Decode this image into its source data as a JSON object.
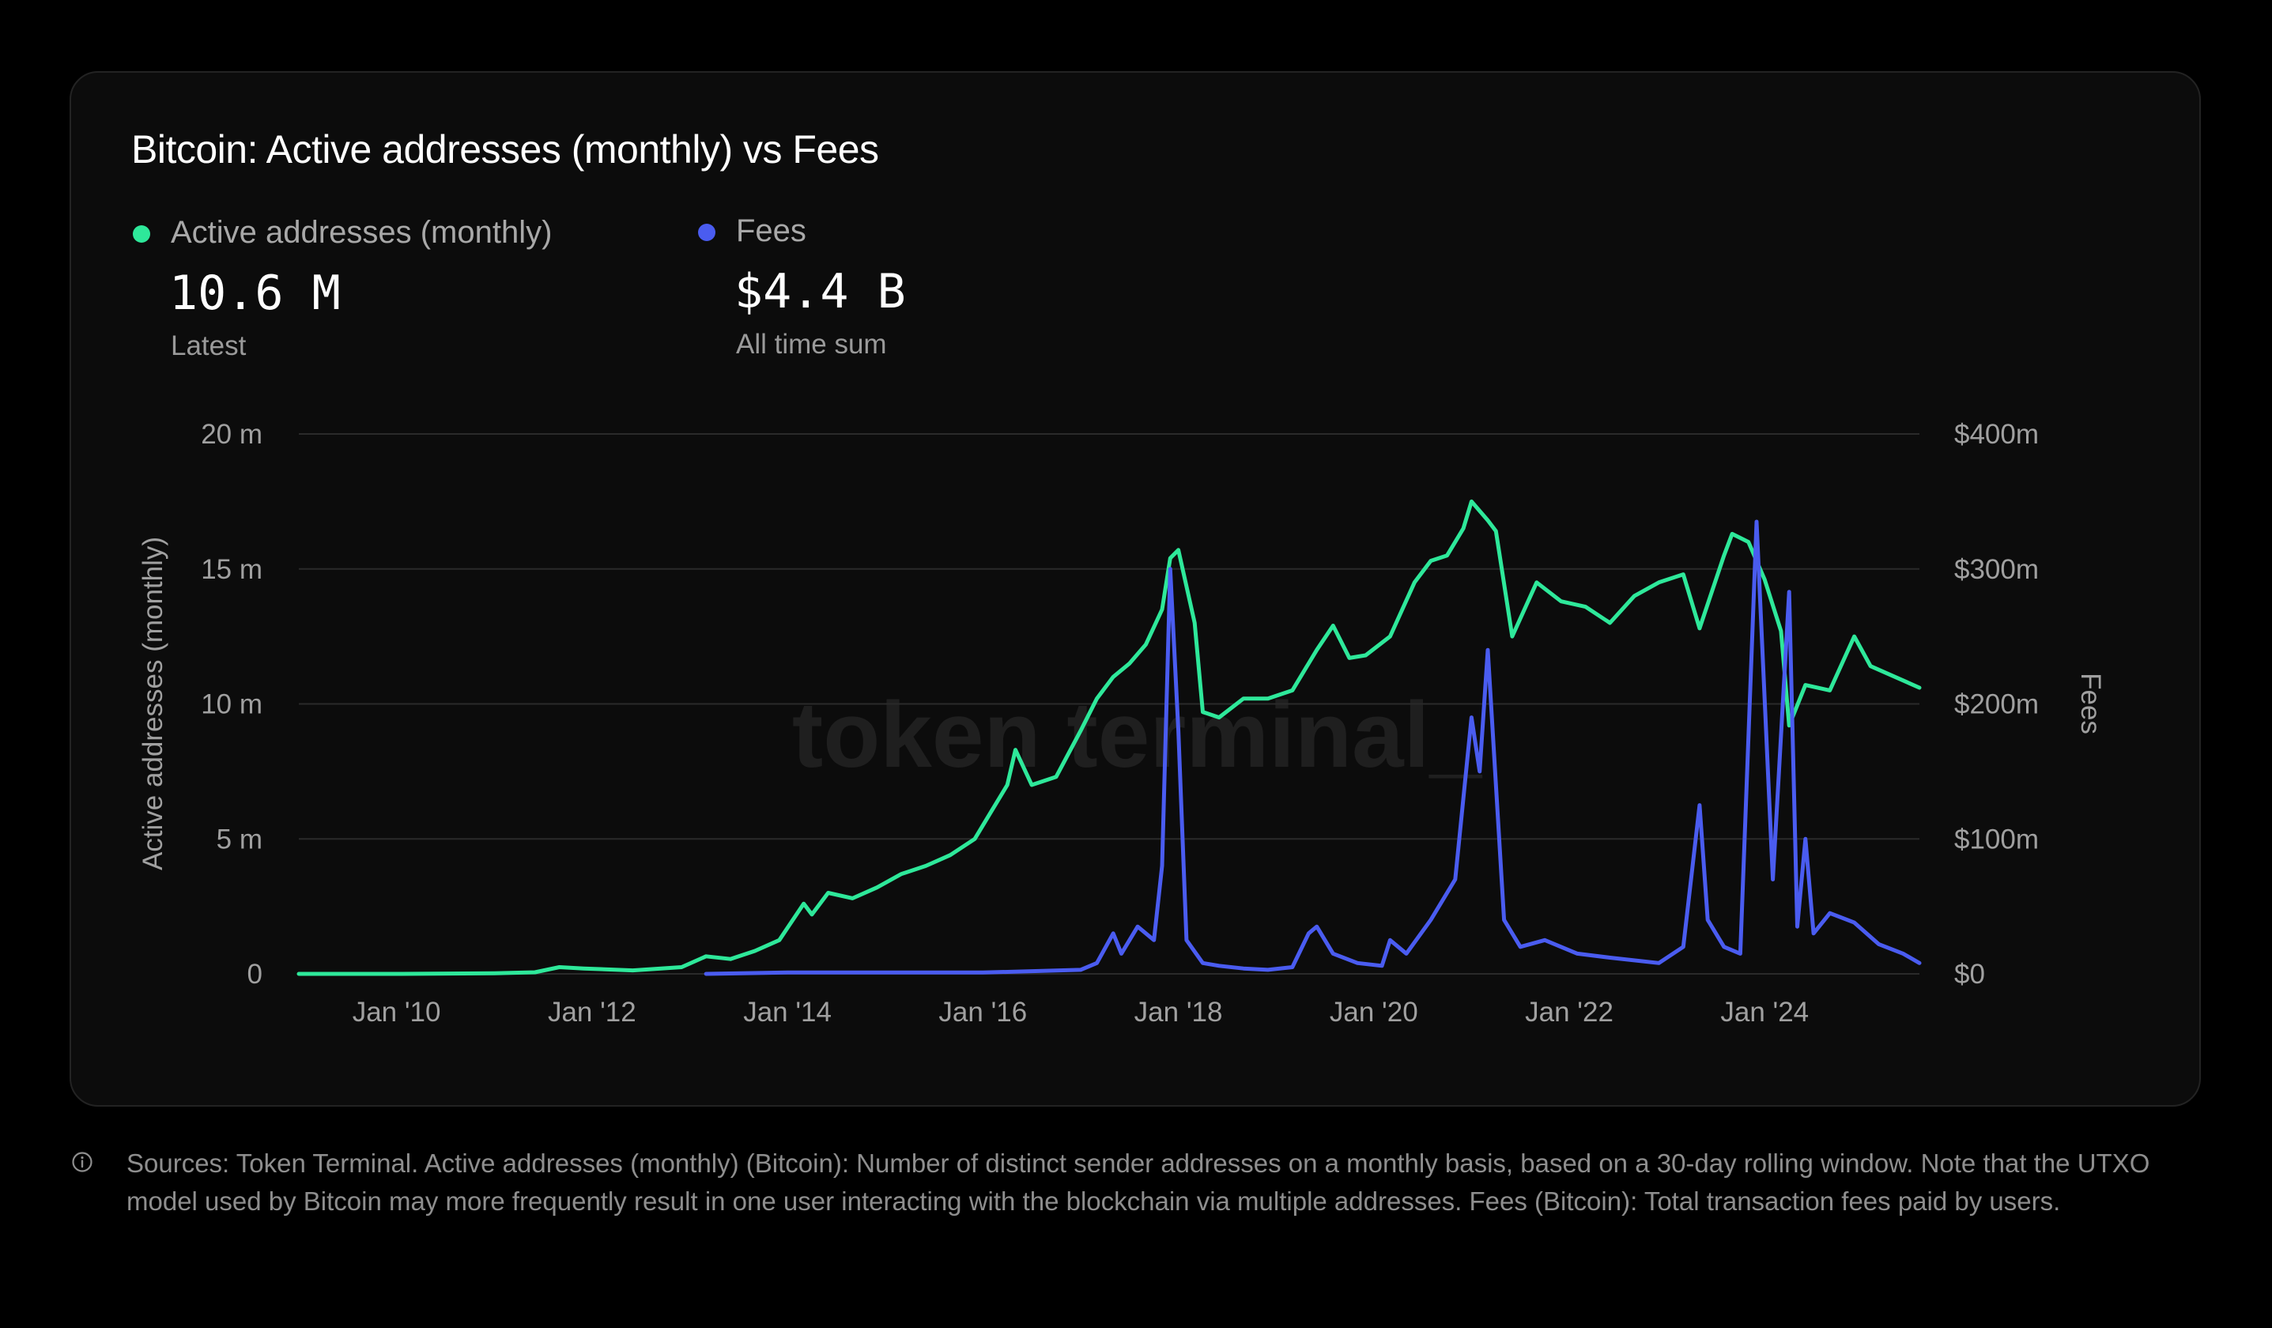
{
  "title": "Bitcoin: Active addresses (monthly) vs Fees",
  "watermark": "token terminal_",
  "colors": {
    "background": "#000000",
    "card": "#0c0c0c",
    "active_addresses": "#2ee89a",
    "fees": "#4a5cf0",
    "grid": "#2a2a2a",
    "axis_text": "#a0a0a0"
  },
  "metrics": [
    {
      "label": "Active addresses (monthly)",
      "value": "10.6 M",
      "sublabel": "Latest",
      "color": "#2ee89a"
    },
    {
      "label": "Fees",
      "value": "$4.4 B",
      "sublabel": "All time sum",
      "color": "#4a5cf0"
    }
  ],
  "footnote": "Sources: Token Terminal. Active addresses (monthly) (Bitcoin): Number of distinct sender addresses on a monthly basis, based on a 30-day rolling window. Note that the UTXO model used by Bitcoin may more frequently result in one user interacting with the blockchain via multiple addresses. Fees (Bitcoin): Total transaction fees paid by users.",
  "icons": {
    "info": "info-icon"
  },
  "chart_data": {
    "type": "line",
    "grid": true,
    "legend": "top-left",
    "x_range": [
      "2009-01",
      "2025-08"
    ],
    "x_tick_labels": [
      "Jan '10",
      "Jan '12",
      "Jan '14",
      "Jan '16",
      "Jan '18",
      "Jan '20",
      "Jan '22",
      "Jan '24"
    ],
    "x_tick_dates": [
      "2010-01",
      "2012-01",
      "2014-01",
      "2016-01",
      "2018-01",
      "2020-01",
      "2022-01",
      "2024-01"
    ],
    "y_left": {
      "label": "Active addresses (monthly)",
      "range": [
        0,
        20000000
      ],
      "ticks": [
        0,
        5000000,
        10000000,
        15000000,
        20000000
      ],
      "tick_labels": [
        "0",
        "5 m",
        "10 m",
        "15 m",
        "20 m"
      ]
    },
    "y_right": {
      "label": "Fees",
      "range": [
        0,
        400000000
      ],
      "ticks": [
        0,
        100000000,
        200000000,
        300000000,
        400000000
      ],
      "tick_labels": [
        "$0",
        "$100m",
        "$200m",
        "$300m",
        "$400m"
      ]
    },
    "series": [
      {
        "name": "Active addresses (monthly)",
        "axis": "left",
        "color": "#2ee89a",
        "points": [
          [
            "2009-01",
            0
          ],
          [
            "2010-01",
            0
          ],
          [
            "2011-01",
            20000
          ],
          [
            "2011-06",
            60000
          ],
          [
            "2011-09",
            250000
          ],
          [
            "2011-12",
            200000
          ],
          [
            "2012-06",
            130000
          ],
          [
            "2012-12",
            250000
          ],
          [
            "2013-03",
            650000
          ],
          [
            "2013-06",
            550000
          ],
          [
            "2013-09",
            850000
          ],
          [
            "2013-12",
            1250000
          ],
          [
            "2014-01",
            1700000
          ],
          [
            "2014-03",
            2600000
          ],
          [
            "2014-04",
            2200000
          ],
          [
            "2014-06",
            3000000
          ],
          [
            "2014-09",
            2800000
          ],
          [
            "2014-12",
            3200000
          ],
          [
            "2015-03",
            3700000
          ],
          [
            "2015-06",
            4000000
          ],
          [
            "2015-09",
            4400000
          ],
          [
            "2015-12",
            5000000
          ],
          [
            "2016-02",
            6000000
          ],
          [
            "2016-04",
            7000000
          ],
          [
            "2016-05",
            8300000
          ],
          [
            "2016-07",
            7000000
          ],
          [
            "2016-10",
            7300000
          ],
          [
            "2017-01",
            9000000
          ],
          [
            "2017-03",
            10200000
          ],
          [
            "2017-05",
            11000000
          ],
          [
            "2017-07",
            11500000
          ],
          [
            "2017-09",
            12200000
          ],
          [
            "2017-11",
            13500000
          ],
          [
            "2017-12",
            15400000
          ],
          [
            "2018-01",
            15700000
          ],
          [
            "2018-03",
            13000000
          ],
          [
            "2018-04",
            9700000
          ],
          [
            "2018-06",
            9500000
          ],
          [
            "2018-09",
            10200000
          ],
          [
            "2018-12",
            10200000
          ],
          [
            "2019-03",
            10500000
          ],
          [
            "2019-06",
            12000000
          ],
          [
            "2019-08",
            12900000
          ],
          [
            "2019-10",
            11700000
          ],
          [
            "2019-12",
            11800000
          ],
          [
            "2020-03",
            12500000
          ],
          [
            "2020-06",
            14500000
          ],
          [
            "2020-08",
            15300000
          ],
          [
            "2020-10",
            15500000
          ],
          [
            "2020-12",
            16500000
          ],
          [
            "2021-01",
            17500000
          ],
          [
            "2021-03",
            16800000
          ],
          [
            "2021-04",
            16400000
          ],
          [
            "2021-06",
            12500000
          ],
          [
            "2021-09",
            14500000
          ],
          [
            "2021-12",
            13800000
          ],
          [
            "2022-03",
            13600000
          ],
          [
            "2022-06",
            13000000
          ],
          [
            "2022-09",
            14000000
          ],
          [
            "2022-12",
            14500000
          ],
          [
            "2023-03",
            14800000
          ],
          [
            "2023-05",
            12800000
          ],
          [
            "2023-08",
            15500000
          ],
          [
            "2023-09",
            16300000
          ],
          [
            "2023-11",
            16000000
          ],
          [
            "2024-01",
            14600000
          ],
          [
            "2024-03",
            12700000
          ],
          [
            "2024-04",
            9200000
          ],
          [
            "2024-06",
            10700000
          ],
          [
            "2024-09",
            10500000
          ],
          [
            "2024-12",
            12500000
          ],
          [
            "2025-02",
            11400000
          ],
          [
            "2025-05",
            11000000
          ],
          [
            "2025-08",
            10600000
          ]
        ]
      },
      {
        "name": "Fees",
        "axis": "right",
        "color": "#4a5cf0",
        "points": [
          [
            "2013-03",
            0
          ],
          [
            "2014-01",
            1000000
          ],
          [
            "2016-01",
            1000000
          ],
          [
            "2017-01",
            3000000
          ],
          [
            "2017-03",
            8000000
          ],
          [
            "2017-05",
            30000000
          ],
          [
            "2017-06",
            15000000
          ],
          [
            "2017-08",
            35000000
          ],
          [
            "2017-10",
            25000000
          ],
          [
            "2017-11",
            80000000
          ],
          [
            "2017-12",
            300000000
          ],
          [
            "2018-01",
            180000000
          ],
          [
            "2018-02",
            25000000
          ],
          [
            "2018-04",
            8000000
          ],
          [
            "2018-06",
            6000000
          ],
          [
            "2018-09",
            4000000
          ],
          [
            "2018-12",
            3000000
          ],
          [
            "2019-03",
            5000000
          ],
          [
            "2019-05",
            30000000
          ],
          [
            "2019-06",
            35000000
          ],
          [
            "2019-08",
            15000000
          ],
          [
            "2019-11",
            8000000
          ],
          [
            "2020-02",
            6000000
          ],
          [
            "2020-03",
            25000000
          ],
          [
            "2020-05",
            15000000
          ],
          [
            "2020-08",
            40000000
          ],
          [
            "2020-11",
            70000000
          ],
          [
            "2021-01",
            190000000
          ],
          [
            "2021-02",
            150000000
          ],
          [
            "2021-03",
            240000000
          ],
          [
            "2021-05",
            40000000
          ],
          [
            "2021-07",
            20000000
          ],
          [
            "2021-10",
            25000000
          ],
          [
            "2022-02",
            15000000
          ],
          [
            "2022-06",
            12000000
          ],
          [
            "2022-12",
            8000000
          ],
          [
            "2023-03",
            20000000
          ],
          [
            "2023-05",
            125000000
          ],
          [
            "2023-06",
            40000000
          ],
          [
            "2023-08",
            20000000
          ],
          [
            "2023-10",
            15000000
          ],
          [
            "2023-12",
            335000000
          ],
          [
            "2024-02",
            70000000
          ],
          [
            "2024-04",
            283000000
          ],
          [
            "2024-05",
            35000000
          ],
          [
            "2024-06",
            100000000
          ],
          [
            "2024-07",
            30000000
          ],
          [
            "2024-09",
            45000000
          ],
          [
            "2024-12",
            38000000
          ],
          [
            "2025-03",
            22000000
          ],
          [
            "2025-06",
            15000000
          ],
          [
            "2025-08",
            8000000
          ]
        ]
      }
    ]
  }
}
